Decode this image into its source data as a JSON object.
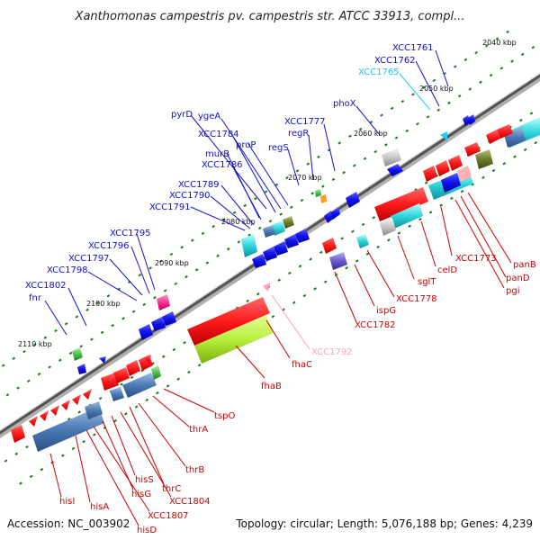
{
  "title": "Xanthomonas campestris pv. campestris str. ATCC 33913, compl...",
  "footer": {
    "accession": "Accession: NC_003902",
    "topology": "Topology: circular; Length: 5,076,188 bp; Genes: 4,239"
  },
  "colors": {
    "forward_label": "#1010cc",
    "reverse_label": "#cc0000",
    "pink_label": "#ff9ec6",
    "cyan_label": "#22ccee",
    "axis_dark": "#555555",
    "tick_green": "#1a7a1a"
  },
  "kbp_labels": [
    "2040 kbp",
    "2050 kbp",
    "2060 kbp",
    "2070 kbp",
    "2080 kbp",
    "2090 kbp",
    "2100 kbp",
    "2110 kbp"
  ],
  "forward_genes": [
    "XCC1761",
    "XCC1762",
    "XCC1765",
    "phoX",
    "XCC1777",
    "regR",
    "regS",
    "pyrD",
    "ygeA",
    "XCC1784",
    "proP",
    "murB",
    "XCC1786",
    "XCC1789",
    "XCC1790",
    "XCC1791",
    "XCC1795",
    "XCC1796",
    "XCC1797",
    "XCC1798",
    "XCC1802",
    "fnr"
  ],
  "reverse_genes": [
    "panB",
    "panD",
    "pgi",
    "XCC1773",
    "celD",
    "sglT",
    "XCC1778",
    "ispG",
    "XCC1782",
    "XCC1792",
    "fhaC",
    "fhaB",
    "tspO",
    "thrA",
    "thrB",
    "thrC",
    "XCC1804",
    "hisS",
    "hisG",
    "XCC1807",
    "hisD",
    "hisA",
    "hisI"
  ]
}
